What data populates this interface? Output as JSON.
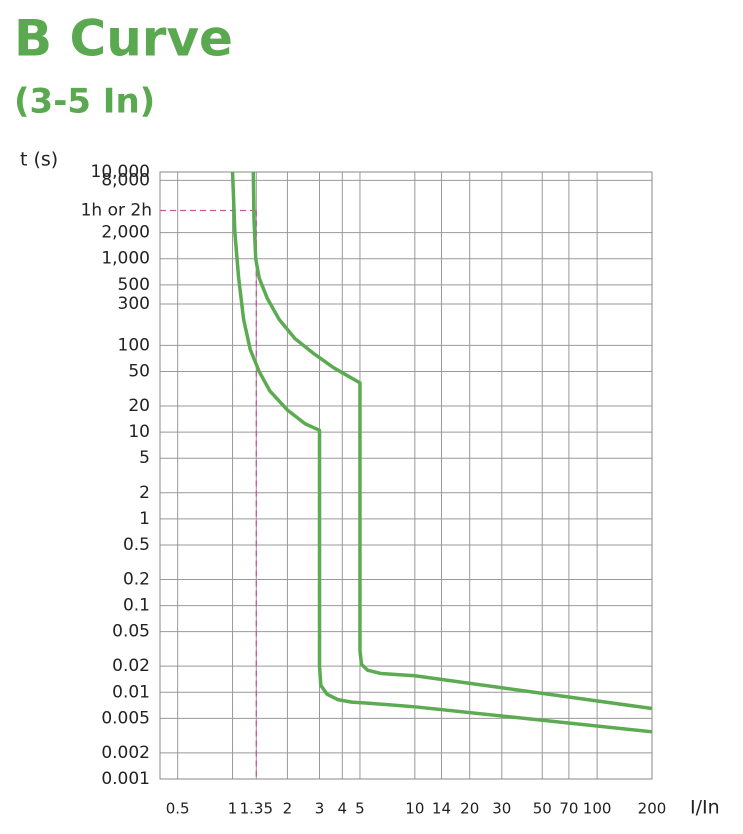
{
  "chart_data": {
    "type": "line",
    "title": "B Curve",
    "subtitle": "(3-5 In)",
    "y_label": "t (s)",
    "x_label": "I/In",
    "log_x": true,
    "log_y": true,
    "grid": true,
    "xlim": [
      0.4,
      200
    ],
    "ylim": [
      0.001,
      10000
    ],
    "xticks": [
      0.5,
      1,
      1.35,
      2,
      3,
      4,
      5,
      10,
      14,
      20,
      30,
      50,
      70,
      100,
      200
    ],
    "yticks": [
      0.001,
      0.002,
      0.005,
      0.01,
      0.02,
      0.05,
      0.1,
      0.2,
      0.5,
      1,
      2,
      5,
      10,
      20,
      50,
      100,
      300,
      500,
      {
        "value": 1000,
        "label": "1,000"
      },
      {
        "value": 2000,
        "label": "2,000"
      },
      {
        "value": 8000,
        "label": "8,000"
      },
      {
        "value": 10000,
        "label": "10,000"
      }
    ],
    "annotation": {
      "label": "1h or 2h",
      "x": 1.35,
      "y": 3600,
      "color": "#c4589c"
    },
    "series": [
      {
        "color": "#5cab52",
        "x": [
          1,
          1.03,
          1.08,
          1.15,
          1.25,
          1.4,
          1.6,
          2,
          2.5,
          3,
          3,
          3.05,
          3.3,
          3.8,
          4.5,
          5.5,
          10,
          200
        ],
        "values": [
          10000,
          2000,
          600,
          200,
          90,
          50,
          30,
          18,
          12.5,
          10.5,
          0.02,
          0.012,
          0.0095,
          0.0082,
          0.0077,
          0.0075,
          0.0068,
          0.0035
        ]
      },
      {
        "color": "#5cab52",
        "x": [
          1.3,
          1.31,
          1.34,
          1.4,
          1.55,
          1.8,
          2.2,
          2.8,
          3.6,
          5,
          5,
          5.1,
          5.5,
          6.5,
          10,
          200
        ],
        "values": [
          10000,
          3000,
          1000,
          600,
          350,
          200,
          120,
          80,
          55,
          37,
          0.03,
          0.021,
          0.018,
          0.0165,
          0.0155,
          0.0065
        ]
      }
    ]
  }
}
